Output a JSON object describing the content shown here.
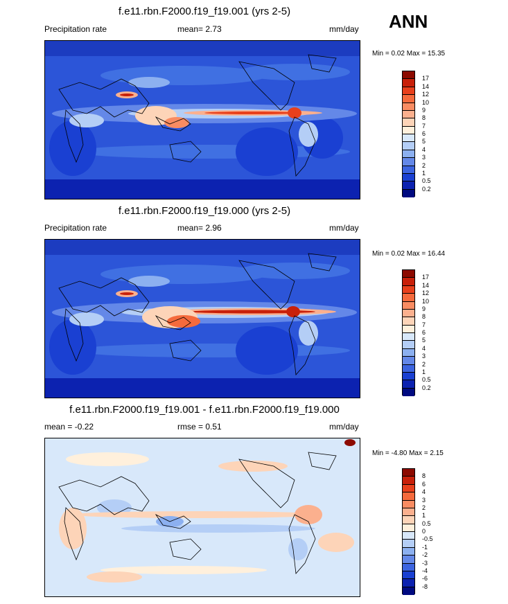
{
  "season": "ANN",
  "panels": [
    {
      "title": "f.e11.rbn.F2000.f19_f19.001 (yrs 2-5)",
      "left_label": "Precipitation rate",
      "mid_label": "mean=   2.73",
      "units": "mm/day",
      "minmax": "Min =   0.02 Max =  15.35",
      "colorbar": [
        "17",
        "14",
        "12",
        "10",
        "9",
        "8",
        "7",
        "6",
        "5",
        "4",
        "3",
        "2",
        "1",
        "0.5",
        "0.2"
      ],
      "colors": [
        "#8c0a00",
        "#c8200a",
        "#e8401c",
        "#f56a3c",
        "#f98c62",
        "#fbb08e",
        "#fdd4b8",
        "#fff0dc",
        "#d8e8fa",
        "#b4cef6",
        "#8cb0f0",
        "#6488e8",
        "#3c64e0",
        "#1a40d2",
        "#0c22b0",
        "#000a80"
      ]
    },
    {
      "title": "f.e11.rbn.F2000.f19_f19.000 (yrs 2-5)",
      "left_label": "Precipitation rate",
      "mid_label": "mean=   2.96",
      "units": "mm/day",
      "minmax": "Min =   0.02 Max =  16.44",
      "colorbar": [
        "17",
        "14",
        "12",
        "10",
        "9",
        "8",
        "7",
        "6",
        "5",
        "4",
        "3",
        "2",
        "1",
        "0.5",
        "0.2"
      ],
      "colors": [
        "#8c0a00",
        "#c8200a",
        "#e8401c",
        "#f56a3c",
        "#f98c62",
        "#fbb08e",
        "#fdd4b8",
        "#fff0dc",
        "#d8e8fa",
        "#b4cef6",
        "#8cb0f0",
        "#6488e8",
        "#3c64e0",
        "#1a40d2",
        "#0c22b0",
        "#000a80"
      ]
    },
    {
      "title": "f.e11.rbn.F2000.f19_f19.001 - f.e11.rbn.F2000.f19_f19.000",
      "left_label": "mean =  -0.22",
      "mid_label": "rmse =   0.51",
      "units": "mm/day",
      "minmax": "Min =  -4.80 Max =   2.15",
      "colorbar": [
        "8",
        "6",
        "4",
        "3",
        "2",
        "1",
        "0.5",
        "0",
        "-0.5",
        "-1",
        "-2",
        "-3",
        "-4",
        "-6",
        "-8"
      ],
      "colors": [
        "#8c0a00",
        "#c8200a",
        "#e8401c",
        "#f56a3c",
        "#f98c62",
        "#fbb08e",
        "#fdd4b8",
        "#fff0dc",
        "#d8e8fa",
        "#b4cef6",
        "#8cb0f0",
        "#6488e8",
        "#3c64e0",
        "#1a40d2",
        "#0c22b0",
        "#000a80"
      ]
    }
  ]
}
